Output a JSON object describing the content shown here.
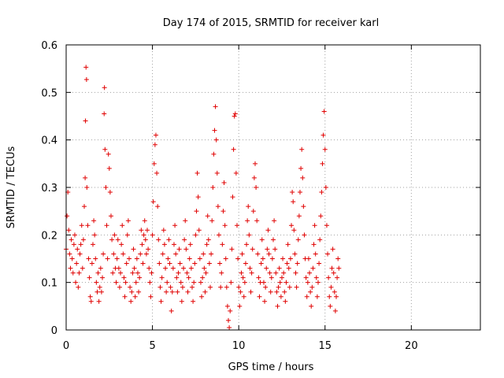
{
  "chart_data": {
    "type": "scatter",
    "title": "Day 174 of 2015, SRMTID for receiver karl",
    "xlabel": "GPS time / hours",
    "ylabel": "SRMTID / TECUs",
    "xlim": [
      0,
      24
    ],
    "ylim": [
      0,
      0.6
    ],
    "x_ticks": [
      0,
      5,
      10,
      15,
      20
    ],
    "x_tick_labels": [
      "0",
      "5",
      "10",
      "15",
      "20"
    ],
    "y_ticks": [
      0,
      0.1,
      0.2,
      0.3,
      0.4,
      0.5,
      0.6
    ],
    "y_tick_labels": [
      "0",
      "0.1",
      "0.2",
      "0.3",
      "0.4",
      "0.5",
      "0.6"
    ],
    "grid": true,
    "marker": "plus",
    "color": "#e00000",
    "series": [
      {
        "name": "SRMTID",
        "points": [
          [
            0.0,
            0.17
          ],
          [
            0.05,
            0.24
          ],
          [
            0.1,
            0.29
          ],
          [
            0.15,
            0.21
          ],
          [
            0.2,
            0.16
          ],
          [
            0.25,
            0.13
          ],
          [
            0.3,
            0.19
          ],
          [
            0.35,
            0.15
          ],
          [
            0.4,
            0.12
          ],
          [
            0.45,
            0.18
          ],
          [
            0.5,
            0.2
          ],
          [
            0.55,
            0.1
          ],
          [
            0.6,
            0.14
          ],
          [
            0.65,
            0.17
          ],
          [
            0.7,
            0.09
          ],
          [
            0.75,
            0.12
          ],
          [
            0.8,
            0.16
          ],
          [
            0.85,
            0.18
          ],
          [
            0.9,
            0.22
          ],
          [
            0.95,
            0.13
          ],
          [
            1.0,
            0.19
          ],
          [
            1.05,
            0.26
          ],
          [
            1.1,
            0.32
          ],
          [
            1.12,
            0.44
          ],
          [
            1.15,
            0.553
          ],
          [
            1.18,
            0.527
          ],
          [
            1.2,
            0.3
          ],
          [
            1.25,
            0.22
          ],
          [
            1.3,
            0.15
          ],
          [
            1.35,
            0.11
          ],
          [
            1.4,
            0.07
          ],
          [
            1.45,
            0.06
          ],
          [
            1.5,
            0.14
          ],
          [
            1.55,
            0.18
          ],
          [
            1.6,
            0.23
          ],
          [
            1.65,
            0.2
          ],
          [
            1.7,
            0.15
          ],
          [
            1.75,
            0.1
          ],
          [
            1.8,
            0.08
          ],
          [
            1.85,
            0.12
          ],
          [
            1.9,
            0.06
          ],
          [
            1.95,
            0.09
          ],
          [
            2.0,
            0.13
          ],
          [
            2.05,
            0.08
          ],
          [
            2.1,
            0.11
          ],
          [
            2.15,
            0.16
          ],
          [
            2.2,
            0.455
          ],
          [
            2.22,
            0.51
          ],
          [
            2.25,
            0.38
          ],
          [
            2.3,
            0.3
          ],
          [
            2.35,
            0.22
          ],
          [
            2.4,
            0.15
          ],
          [
            2.45,
            0.37
          ],
          [
            2.5,
            0.34
          ],
          [
            2.55,
            0.29
          ],
          [
            2.6,
            0.24
          ],
          [
            2.65,
            0.19
          ],
          [
            2.7,
            0.12
          ],
          [
            2.75,
            0.16
          ],
          [
            2.8,
            0.2
          ],
          [
            2.85,
            0.13
          ],
          [
            2.9,
            0.1
          ],
          [
            2.95,
            0.15
          ],
          [
            3.0,
            0.19
          ],
          [
            3.05,
            0.13
          ],
          [
            3.1,
            0.09
          ],
          [
            3.15,
            0.12
          ],
          [
            3.2,
            0.18
          ],
          [
            3.25,
            0.22
          ],
          [
            3.3,
            0.16
          ],
          [
            3.35,
            0.11
          ],
          [
            3.4,
            0.07
          ],
          [
            3.45,
            0.1
          ],
          [
            3.5,
            0.14
          ],
          [
            3.55,
            0.2
          ],
          [
            3.6,
            0.23
          ],
          [
            3.65,
            0.15
          ],
          [
            3.7,
            0.09
          ],
          [
            3.75,
            0.06
          ],
          [
            3.8,
            0.08
          ],
          [
            3.85,
            0.12
          ],
          [
            3.9,
            0.17
          ],
          [
            3.95,
            0.13
          ],
          [
            4.0,
            0.07
          ],
          [
            4.05,
            0.1
          ],
          [
            4.1,
            0.15
          ],
          [
            4.15,
            0.12
          ],
          [
            4.2,
            0.08
          ],
          [
            4.25,
            0.11
          ],
          [
            4.3,
            0.16
          ],
          [
            4.35,
            0.21
          ],
          [
            4.4,
            0.18
          ],
          [
            4.45,
            0.14
          ],
          [
            4.5,
            0.2
          ],
          [
            4.55,
            0.23
          ],
          [
            4.6,
            0.19
          ],
          [
            4.65,
            0.16
          ],
          [
            4.7,
            0.21
          ],
          [
            4.75,
            0.17
          ],
          [
            4.8,
            0.13
          ],
          [
            4.85,
            0.1
          ],
          [
            4.9,
            0.07
          ],
          [
            4.95,
            0.12
          ],
          [
            5.0,
            0.2
          ],
          [
            5.05,
            0.27
          ],
          [
            5.1,
            0.35
          ],
          [
            5.15,
            0.39
          ],
          [
            5.2,
            0.41
          ],
          [
            5.25,
            0.33
          ],
          [
            5.3,
            0.26
          ],
          [
            5.35,
            0.19
          ],
          [
            5.4,
            0.14
          ],
          [
            5.45,
            0.09
          ],
          [
            5.5,
            0.06
          ],
          [
            5.55,
            0.11
          ],
          [
            5.6,
            0.16
          ],
          [
            5.65,
            0.21
          ],
          [
            5.7,
            0.18
          ],
          [
            5.75,
            0.13
          ],
          [
            5.8,
            0.08
          ],
          [
            5.85,
            0.1
          ],
          [
            5.9,
            0.15
          ],
          [
            5.95,
            0.19
          ],
          [
            6.0,
            0.14
          ],
          [
            6.05,
            0.09
          ],
          [
            6.1,
            0.04
          ],
          [
            6.15,
            0.08
          ],
          [
            6.2,
            0.13
          ],
          [
            6.25,
            0.18
          ],
          [
            6.3,
            0.22
          ],
          [
            6.35,
            0.16
          ],
          [
            6.4,
            0.11
          ],
          [
            6.45,
            0.08
          ],
          [
            6.5,
            0.12
          ],
          [
            6.55,
            0.17
          ],
          [
            6.6,
            0.14
          ],
          [
            6.65,
            0.1
          ],
          [
            6.7,
            0.06
          ],
          [
            6.75,
            0.09
          ],
          [
            6.8,
            0.13
          ],
          [
            6.85,
            0.19
          ],
          [
            6.9,
            0.23
          ],
          [
            6.95,
            0.17
          ],
          [
            7.0,
            0.12
          ],
          [
            7.05,
            0.08
          ],
          [
            7.1,
            0.11
          ],
          [
            7.15,
            0.15
          ],
          [
            7.2,
            0.18
          ],
          [
            7.25,
            0.13
          ],
          [
            7.3,
            0.09
          ],
          [
            7.35,
            0.06
          ],
          [
            7.4,
            0.1
          ],
          [
            7.45,
            0.14
          ],
          [
            7.5,
            0.2
          ],
          [
            7.55,
            0.25
          ],
          [
            7.6,
            0.33
          ],
          [
            7.65,
            0.28
          ],
          [
            7.7,
            0.21
          ],
          [
            7.75,
            0.15
          ],
          [
            7.8,
            0.1
          ],
          [
            7.85,
            0.07
          ],
          [
            7.9,
            0.11
          ],
          [
            7.95,
            0.16
          ],
          [
            8.0,
            0.13
          ],
          [
            8.05,
            0.08
          ],
          [
            8.1,
            0.12
          ],
          [
            8.15,
            0.18
          ],
          [
            8.2,
            0.24
          ],
          [
            8.25,
            0.19
          ],
          [
            8.3,
            0.14
          ],
          [
            8.35,
            0.09
          ],
          [
            8.4,
            0.16
          ],
          [
            8.45,
            0.23
          ],
          [
            8.5,
            0.3
          ],
          [
            8.55,
            0.37
          ],
          [
            8.6,
            0.42
          ],
          [
            8.65,
            0.47
          ],
          [
            8.7,
            0.4
          ],
          [
            8.75,
            0.33
          ],
          [
            8.8,
            0.26
          ],
          [
            8.85,
            0.2
          ],
          [
            8.9,
            0.14
          ],
          [
            8.95,
            0.09
          ],
          [
            9.0,
            0.12
          ],
          [
            9.05,
            0.18
          ],
          [
            9.1,
            0.25
          ],
          [
            9.15,
            0.31
          ],
          [
            9.2,
            0.22
          ],
          [
            9.25,
            0.15
          ],
          [
            9.3,
            0.09
          ],
          [
            9.35,
            0.05
          ],
          [
            9.4,
            0.02
          ],
          [
            9.45,
            0.005
          ],
          [
            9.5,
            0.04
          ],
          [
            9.55,
            0.1
          ],
          [
            9.6,
            0.17
          ],
          [
            9.65,
            0.28
          ],
          [
            9.7,
            0.38
          ],
          [
            9.75,
            0.45
          ],
          [
            9.8,
            0.455
          ],
          [
            9.85,
            0.33
          ],
          [
            9.9,
            0.22
          ],
          [
            9.95,
            0.15
          ],
          [
            10.0,
            0.09
          ],
          [
            10.05,
            0.05
          ],
          [
            10.1,
            0.08
          ],
          [
            10.15,
            0.12
          ],
          [
            10.2,
            0.16
          ],
          [
            10.25,
            0.11
          ],
          [
            10.3,
            0.07
          ],
          [
            10.35,
            0.1
          ],
          [
            10.4,
            0.14
          ],
          [
            10.45,
            0.18
          ],
          [
            10.5,
            0.23
          ],
          [
            10.55,
            0.26
          ],
          [
            10.6,
            0.2
          ],
          [
            10.65,
            0.13
          ],
          [
            10.7,
            0.08
          ],
          [
            10.75,
            0.12
          ],
          [
            10.8,
            0.17
          ],
          [
            10.85,
            0.25
          ],
          [
            10.9,
            0.32
          ],
          [
            10.95,
            0.35
          ],
          [
            11.0,
            0.3
          ],
          [
            11.05,
            0.23
          ],
          [
            11.1,
            0.16
          ],
          [
            11.15,
            0.11
          ],
          [
            11.2,
            0.07
          ],
          [
            11.25,
            0.1
          ],
          [
            11.3,
            0.14
          ],
          [
            11.35,
            0.19
          ],
          [
            11.4,
            0.15
          ],
          [
            11.45,
            0.1
          ],
          [
            11.5,
            0.06
          ],
          [
            11.55,
            0.09
          ],
          [
            11.6,
            0.13
          ],
          [
            11.65,
            0.17
          ],
          [
            11.7,
            0.21
          ],
          [
            11.75,
            0.16
          ],
          [
            11.8,
            0.12
          ],
          [
            11.85,
            0.08
          ],
          [
            11.9,
            0.11
          ],
          [
            11.95,
            0.15
          ],
          [
            12.0,
            0.19
          ],
          [
            12.05,
            0.23
          ],
          [
            12.1,
            0.17
          ],
          [
            12.15,
            0.12
          ],
          [
            12.2,
            0.08
          ],
          [
            12.25,
            0.05
          ],
          [
            12.3,
            0.09
          ],
          [
            12.35,
            0.13
          ],
          [
            12.4,
            0.1
          ],
          [
            12.45,
            0.07
          ],
          [
            12.5,
            0.11
          ],
          [
            12.55,
            0.15
          ],
          [
            12.6,
            0.12
          ],
          [
            12.65,
            0.08
          ],
          [
            12.7,
            0.06
          ],
          [
            12.75,
            0.1
          ],
          [
            12.8,
            0.14
          ],
          [
            12.85,
            0.18
          ],
          [
            12.9,
            0.13
          ],
          [
            12.95,
            0.09
          ],
          [
            13.0,
            0.15
          ],
          [
            13.05,
            0.22
          ],
          [
            13.1,
            0.29
          ],
          [
            13.15,
            0.27
          ],
          [
            13.2,
            0.21
          ],
          [
            13.25,
            0.16
          ],
          [
            13.3,
            0.12
          ],
          [
            13.35,
            0.09
          ],
          [
            13.4,
            0.14
          ],
          [
            13.45,
            0.19
          ],
          [
            13.5,
            0.24
          ],
          [
            13.55,
            0.29
          ],
          [
            13.6,
            0.34
          ],
          [
            13.65,
            0.38
          ],
          [
            13.7,
            0.32
          ],
          [
            13.75,
            0.26
          ],
          [
            13.8,
            0.2
          ],
          [
            13.85,
            0.15
          ],
          [
            13.9,
            0.11
          ],
          [
            13.95,
            0.07
          ],
          [
            14.0,
            0.1
          ],
          [
            14.05,
            0.15
          ],
          [
            14.1,
            0.12
          ],
          [
            14.15,
            0.08
          ],
          [
            14.2,
            0.05
          ],
          [
            14.25,
            0.09
          ],
          [
            14.3,
            0.13
          ],
          [
            14.35,
            0.18
          ],
          [
            14.4,
            0.22
          ],
          [
            14.45,
            0.16
          ],
          [
            14.5,
            0.11
          ],
          [
            14.55,
            0.07
          ],
          [
            14.6,
            0.1
          ],
          [
            14.65,
            0.14
          ],
          [
            14.7,
            0.19
          ],
          [
            14.75,
            0.24
          ],
          [
            14.8,
            0.29
          ],
          [
            14.85,
            0.35
          ],
          [
            14.9,
            0.41
          ],
          [
            14.95,
            0.46
          ],
          [
            15.0,
            0.38
          ],
          [
            15.05,
            0.3
          ],
          [
            15.1,
            0.22
          ],
          [
            15.15,
            0.16
          ],
          [
            15.2,
            0.11
          ],
          [
            15.25,
            0.07
          ],
          [
            15.3,
            0.05
          ],
          [
            15.35,
            0.09
          ],
          [
            15.4,
            0.13
          ],
          [
            15.45,
            0.17
          ],
          [
            15.5,
            0.12
          ],
          [
            15.55,
            0.08
          ],
          [
            15.6,
            0.04
          ],
          [
            15.65,
            0.07
          ],
          [
            15.7,
            0.11
          ],
          [
            15.75,
            0.15
          ],
          [
            15.8,
            0.13
          ]
        ]
      }
    ]
  }
}
